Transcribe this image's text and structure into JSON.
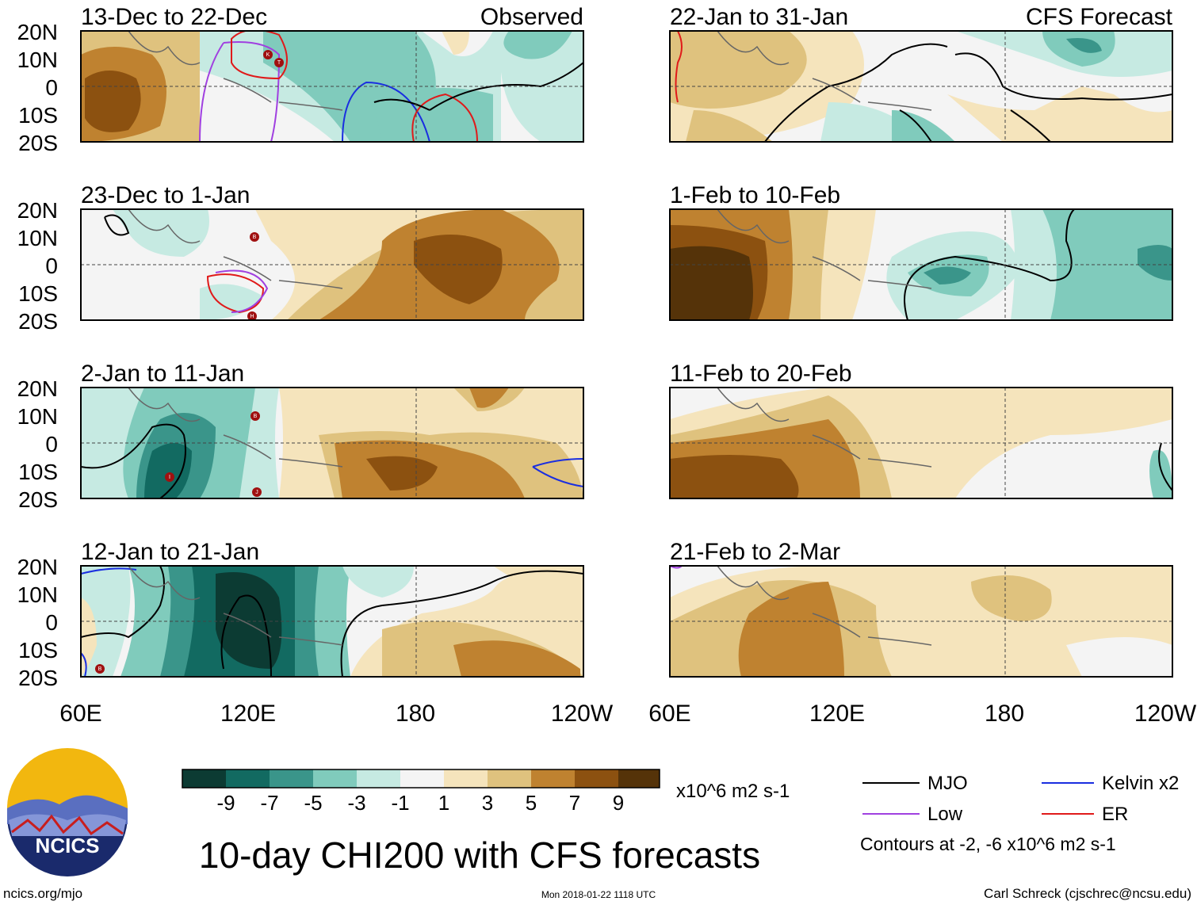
{
  "figure": {
    "title": "10-day CHI200 with CFS forecasts",
    "units": "x10^6 m2 s-1",
    "left_label": "Observed",
    "right_label": "CFS Forecast",
    "contour_note": "Contours at -2, -6 x10^6 m2 s-1",
    "url": "ncics.org/mjo",
    "timestamp": "Mon 2018-01-22 1118 UTC",
    "author": "Carl Schreck (cjschrec@ncsu.edu)",
    "logo_text": "NCICS"
  },
  "axes": {
    "lat_labels": [
      "20N",
      "10N",
      "0",
      "10S",
      "20S"
    ],
    "lon_labels": [
      "60E",
      "120E",
      "180",
      "120W"
    ]
  },
  "colorbar": {
    "colors": [
      "#0c3b33",
      "#126a61",
      "#3a958a",
      "#80cbbc",
      "#c6eae2",
      "#f4f4f4",
      "#f5e4bc",
      "#dfc27e",
      "#bf8230",
      "#8c5110",
      "#553309"
    ],
    "labels": [
      "-9",
      "-7",
      "-5",
      "-3",
      "-1",
      "1",
      "3",
      "5",
      "7",
      "9"
    ]
  },
  "legend": [
    {
      "label": "MJO",
      "color": "#000000"
    },
    {
      "label": "Kelvin x2",
      "color": "#1a2ee0"
    },
    {
      "label": "Low",
      "color": "#a040e0"
    },
    {
      "label": "ER",
      "color": "#e01a1a"
    }
  ],
  "panels": [
    {
      "title": "13-Dec to 22-Dec",
      "storms": [
        "K",
        "T"
      ]
    },
    {
      "title": "22-Jan to 31-Jan",
      "storms": []
    },
    {
      "title": "23-Dec to 1-Jan",
      "storms": [
        "B",
        "H"
      ]
    },
    {
      "title": "1-Feb to 10-Feb",
      "storms": []
    },
    {
      "title": "2-Jan to 11-Jan",
      "storms": [
        "B",
        "I",
        "J"
      ]
    },
    {
      "title": "11-Feb to 20-Feb",
      "storms": []
    },
    {
      "title": "12-Jan to 21-Jan",
      "storms": [
        "B"
      ]
    },
    {
      "title": "21-Feb to 2-Mar",
      "storms": []
    }
  ]
}
